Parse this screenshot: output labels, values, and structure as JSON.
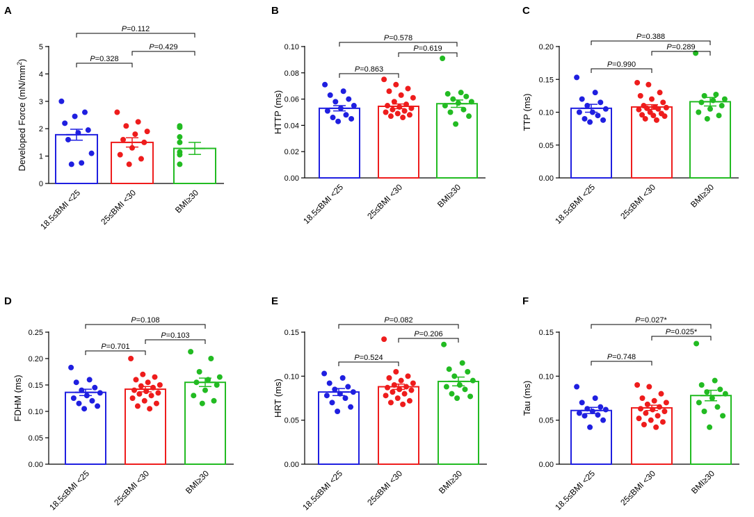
{
  "figure": {
    "categories": [
      "18.5≤BMI <25",
      "25≤BMI <30",
      "BMI≥30"
    ],
    "colors": [
      "#1f1fe0",
      "#ee1c1c",
      "#22bb22"
    ]
  },
  "chart_data": [
    {
      "panel": "A",
      "type": "bar",
      "ylabel": "Developed Force (mN/mm²)",
      "ylabel_parts": {
        "base": "Developed Force (mN/mm",
        "sup": "2",
        "end": ")"
      },
      "ylim": [
        0,
        5
      ],
      "ticks": [
        "0",
        "1",
        "2",
        "3",
        "4",
        "5"
      ],
      "tick_values": [
        0,
        1,
        2,
        3,
        4,
        5
      ],
      "means": [
        1.78,
        1.5,
        1.28
      ],
      "sem": [
        0.2,
        0.17,
        0.22
      ],
      "points": [
        [
          3.0,
          2.6,
          2.45,
          2.2,
          1.95,
          1.85,
          1.6,
          1.1,
          0.75,
          0.7
        ],
        [
          2.6,
          2.25,
          2.1,
          1.9,
          1.8,
          1.6,
          1.5,
          1.3,
          1.05,
          0.9,
          0.7
        ],
        [
          2.1,
          2.05,
          1.7,
          1.5,
          1.15,
          1.05,
          0.7
        ]
      ],
      "comparisons": [
        {
          "from": 0,
          "to": 1,
          "label": "P=0.328",
          "level": 1
        },
        {
          "from": 1,
          "to": 2,
          "label": "P=0.429",
          "level": 2
        },
        {
          "from": 0,
          "to": 2,
          "label": "P=0.112",
          "level": 3
        }
      ]
    },
    {
      "panel": "B",
      "type": "bar",
      "ylabel": "HTTP (ms)",
      "ylim": [
        0,
        0.1
      ],
      "ticks": [
        "0.00",
        "0.02",
        "0.04",
        "0.06",
        "0.08",
        "0.10"
      ],
      "tick_values": [
        0,
        0.02,
        0.04,
        0.06,
        0.08,
        0.1
      ],
      "means": [
        0.053,
        0.0545,
        0.0565
      ],
      "sem": [
        0.002,
        0.0018,
        0.0028
      ],
      "points": [
        [
          0.071,
          0.066,
          0.063,
          0.06,
          0.058,
          0.055,
          0.053,
          0.051,
          0.048,
          0.046,
          0.045,
          0.043
        ],
        [
          0.075,
          0.071,
          0.068,
          0.066,
          0.063,
          0.061,
          0.058,
          0.056,
          0.055,
          0.054,
          0.053,
          0.052,
          0.051,
          0.05,
          0.049,
          0.048,
          0.047,
          0.046
        ],
        [
          0.091,
          0.065,
          0.064,
          0.062,
          0.06,
          0.058,
          0.057,
          0.055,
          0.052,
          0.05,
          0.047,
          0.041
        ]
      ],
      "comparisons": [
        {
          "from": 0,
          "to": 1,
          "label": "P=0.863",
          "level": 1
        },
        {
          "from": 1,
          "to": 2,
          "label": "P=0.619",
          "level": 2
        },
        {
          "from": 0,
          "to": 2,
          "label": "P=0.578",
          "level": 3
        }
      ]
    },
    {
      "panel": "C",
      "type": "bar",
      "ylabel": "TTP (ms)",
      "ylim": [
        0,
        0.2
      ],
      "ticks": [
        "0.00",
        "0.05",
        "0.10",
        "0.15",
        "0.20"
      ],
      "tick_values": [
        0,
        0.05,
        0.1,
        0.15,
        0.2
      ],
      "means": [
        0.106,
        0.108,
        0.116
      ],
      "sem": [
        0.006,
        0.0035,
        0.0065
      ],
      "points": [
        [
          0.153,
          0.13,
          0.12,
          0.115,
          0.11,
          0.105,
          0.1,
          0.1,
          0.095,
          0.09,
          0.088,
          0.085
        ],
        [
          0.145,
          0.142,
          0.13,
          0.125,
          0.12,
          0.115,
          0.11,
          0.108,
          0.107,
          0.106,
          0.105,
          0.104,
          0.1,
          0.098,
          0.096,
          0.095,
          0.094,
          0.09,
          0.088
        ],
        [
          0.19,
          0.127,
          0.125,
          0.12,
          0.118,
          0.115,
          0.11,
          0.105,
          0.1,
          0.095,
          0.09
        ]
      ],
      "comparisons": [
        {
          "from": 0,
          "to": 1,
          "label": "P=0.990",
          "level": 1
        },
        {
          "from": 1,
          "to": 2,
          "label": "P=0.289",
          "level": 2
        },
        {
          "from": 0,
          "to": 2,
          "label": "P=0.388",
          "level": 3
        }
      ]
    },
    {
      "panel": "D",
      "type": "bar",
      "ylabel": "FDHM (ms)",
      "ylim": [
        0,
        0.25
      ],
      "ticks": [
        "0.00",
        "0.05",
        "0.10",
        "0.15",
        "0.20",
        "0.25"
      ],
      "tick_values": [
        0,
        0.05,
        0.1,
        0.15,
        0.2,
        0.25
      ],
      "means": [
        0.136,
        0.142,
        0.155
      ],
      "sem": [
        0.006,
        0.005,
        0.008
      ],
      "points": [
        [
          0.183,
          0.16,
          0.155,
          0.145,
          0.14,
          0.135,
          0.13,
          0.125,
          0.12,
          0.115,
          0.11,
          0.105
        ],
        [
          0.2,
          0.17,
          0.165,
          0.16,
          0.155,
          0.15,
          0.148,
          0.145,
          0.14,
          0.138,
          0.135,
          0.133,
          0.13,
          0.125,
          0.12,
          0.115,
          0.11,
          0.105
        ],
        [
          0.213,
          0.2,
          0.175,
          0.165,
          0.16,
          0.155,
          0.15,
          0.14,
          0.13,
          0.12,
          0.115
        ]
      ],
      "comparisons": [
        {
          "from": 0,
          "to": 1,
          "label": "P=0.701",
          "level": 1
        },
        {
          "from": 1,
          "to": 2,
          "label": "P=0.103",
          "level": 2
        },
        {
          "from": 0,
          "to": 2,
          "label": "P=0.108",
          "level": 3
        }
      ]
    },
    {
      "panel": "E",
      "type": "bar",
      "ylabel": "HRT (ms)",
      "ylim": [
        0,
        0.15
      ],
      "ticks": [
        "0.00",
        "0.05",
        "0.10",
        "0.15"
      ],
      "tick_values": [
        0,
        0.05,
        0.1,
        0.15
      ],
      "means": [
        0.082,
        0.088,
        0.094
      ],
      "sem": [
        0.004,
        0.003,
        0.005
      ],
      "points": [
        [
          0.103,
          0.098,
          0.092,
          0.088,
          0.085,
          0.082,
          0.08,
          0.078,
          0.075,
          0.07,
          0.065,
          0.06
        ],
        [
          0.142,
          0.105,
          0.1,
          0.098,
          0.095,
          0.092,
          0.09,
          0.088,
          0.087,
          0.085,
          0.084,
          0.082,
          0.08,
          0.078,
          0.075,
          0.072,
          0.07,
          0.068
        ],
        [
          0.136,
          0.115,
          0.108,
          0.105,
          0.1,
          0.095,
          0.09,
          0.088,
          0.085,
          0.08,
          0.077,
          0.075
        ]
      ],
      "comparisons": [
        {
          "from": 0,
          "to": 1,
          "label": "P=0.524",
          "level": 1
        },
        {
          "from": 1,
          "to": 2,
          "label": "P=0.206",
          "level": 2
        },
        {
          "from": 0,
          "to": 2,
          "label": "P=0.082",
          "level": 3
        }
      ]
    },
    {
      "panel": "F",
      "type": "bar",
      "ylabel": "Tau (ms)",
      "ylim": [
        0,
        0.15
      ],
      "ticks": [
        "0.00",
        "0.05",
        "0.10",
        "0.15"
      ],
      "tick_values": [
        0,
        0.05,
        0.1,
        0.15
      ],
      "means": [
        0.061,
        0.064,
        0.078
      ],
      "sem": [
        0.0035,
        0.003,
        0.006
      ],
      "points": [
        [
          0.088,
          0.075,
          0.07,
          0.065,
          0.063,
          0.062,
          0.06,
          0.058,
          0.056,
          0.055,
          0.05,
          0.042
        ],
        [
          0.09,
          0.088,
          0.08,
          0.075,
          0.072,
          0.07,
          0.068,
          0.065,
          0.063,
          0.062,
          0.06,
          0.058,
          0.055,
          0.052,
          0.05,
          0.048,
          0.045,
          0.042
        ],
        [
          0.137,
          0.095,
          0.09,
          0.085,
          0.082,
          0.08,
          0.075,
          0.07,
          0.065,
          0.06,
          0.055,
          0.042
        ]
      ],
      "comparisons": [
        {
          "from": 0,
          "to": 1,
          "label": "P=0.748",
          "level": 1
        },
        {
          "from": 1,
          "to": 2,
          "label": "P=0.025*",
          "level": 2
        },
        {
          "from": 0,
          "to": 2,
          "label": "P=0.027*",
          "level": 3
        }
      ]
    }
  ]
}
